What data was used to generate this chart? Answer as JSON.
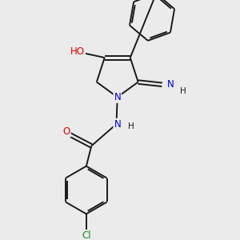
{
  "background_color": "#ebebeb",
  "bond_color": "#1a1a1a",
  "atom_colors": {
    "O": "#e00000",
    "N": "#0000dd",
    "Cl": "#228822",
    "C": "#1a1a1a",
    "H": "#1a1a1a"
  },
  "figsize": [
    3.0,
    3.0
  ],
  "dpi": 100,
  "bond_lw": 1.4,
  "font_size": 8.5
}
